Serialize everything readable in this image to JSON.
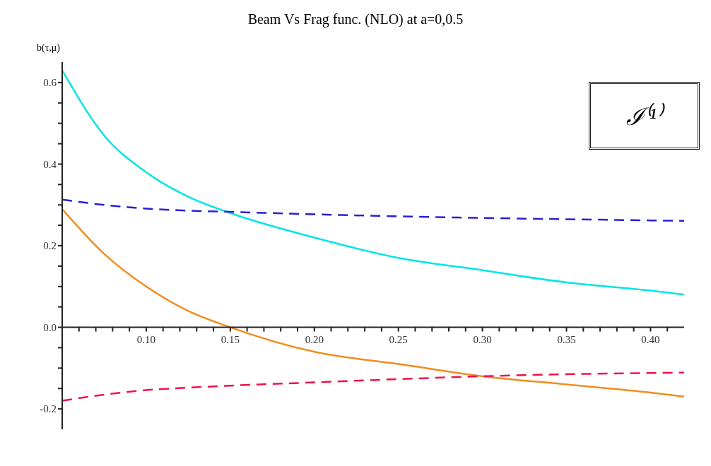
{
  "chart_data": {
    "type": "line",
    "title": "Beam Vs Frag func. (NLO) at a=0,0.5",
    "ylabel": "b(τ,μ)",
    "annotations": [
      "ℐ⁽¹⁾"
    ],
    "x": [
      0.05,
      0.075,
      0.1,
      0.125,
      0.15,
      0.2,
      0.25,
      0.3,
      0.35,
      0.4,
      0.42
    ],
    "series": [
      {
        "color": "#00e5e5",
        "line_style": "solid",
        "values": [
          0.63,
          0.47,
          0.38,
          0.32,
          0.28,
          0.22,
          0.17,
          0.14,
          0.11,
          0.09,
          0.08
        ]
      },
      {
        "color": "#2a1fd6",
        "line_style": "dashed",
        "values": [
          0.313,
          0.3,
          0.291,
          0.286,
          0.283,
          0.277,
          0.272,
          0.268,
          0.265,
          0.262,
          0.261
        ]
      },
      {
        "color": "#f28c1c",
        "line_style": "solid",
        "values": [
          0.29,
          0.18,
          0.1,
          0.04,
          0.0,
          -0.06,
          -0.09,
          -0.12,
          -0.14,
          -0.16,
          -0.17
        ]
      },
      {
        "color": "#f0124a",
        "line_style": "dashed",
        "values": [
          -0.18,
          -0.165,
          -0.154,
          -0.148,
          -0.143,
          -0.135,
          -0.127,
          -0.12,
          -0.115,
          -0.112,
          -0.111
        ]
      }
    ],
    "xlim": [
      0.05,
      0.42
    ],
    "xticks": [
      {
        "value": 0.06,
        "label": null
      },
      {
        "value": 0.07,
        "label": null
      },
      {
        "value": 0.08,
        "label": null
      },
      {
        "value": 0.09,
        "label": null
      },
      {
        "value": 0.1,
        "label": "0.10"
      },
      {
        "value": 0.11,
        "label": null
      },
      {
        "value": 0.12,
        "label": null
      },
      {
        "value": 0.13,
        "label": null
      },
      {
        "value": 0.14,
        "label": null
      },
      {
        "value": 0.15,
        "label": "0.15"
      },
      {
        "value": 0.16,
        "label": null
      },
      {
        "value": 0.17,
        "label": null
      },
      {
        "value": 0.18,
        "label": null
      },
      {
        "value": 0.19,
        "label": null
      },
      {
        "value": 0.2,
        "label": "0.20"
      },
      {
        "value": 0.21,
        "label": null
      },
      {
        "value": 0.22,
        "label": null
      },
      {
        "value": 0.23,
        "label": null
      },
      {
        "value": 0.24,
        "label": null
      },
      {
        "value": 0.25,
        "label": "0.25"
      },
      {
        "value": 0.26,
        "label": null
      },
      {
        "value": 0.27,
        "label": null
      },
      {
        "value": 0.28,
        "label": null
      },
      {
        "value": 0.29,
        "label": null
      },
      {
        "value": 0.3,
        "label": "0.30"
      },
      {
        "value": 0.31,
        "label": null
      },
      {
        "value": 0.32,
        "label": null
      },
      {
        "value": 0.33,
        "label": null
      },
      {
        "value": 0.34,
        "label": null
      },
      {
        "value": 0.35,
        "label": "0.35"
      },
      {
        "value": 0.36,
        "label": null
      },
      {
        "value": 0.37,
        "label": null
      },
      {
        "value": 0.38,
        "label": null
      },
      {
        "value": 0.39,
        "label": null
      },
      {
        "value": 0.4,
        "label": "0.40"
      },
      {
        "value": 0.41,
        "label": null
      }
    ],
    "ylim": [
      -0.25,
      0.65
    ],
    "yticks": [
      {
        "value": -0.2,
        "label": "-0.2"
      },
      {
        "value": -0.15,
        "label": null
      },
      {
        "value": -0.1,
        "label": null
      },
      {
        "value": -0.05,
        "label": null
      },
      {
        "value": 0,
        "label": "0.0"
      },
      {
        "value": 0.05,
        "label": null
      },
      {
        "value": 0.1,
        "label": null
      },
      {
        "value": 0.15,
        "label": null
      },
      {
        "value": 0.2,
        "label": "0.2"
      },
      {
        "value": 0.25,
        "label": null
      },
      {
        "value": 0.3,
        "label": null
      },
      {
        "value": 0.35,
        "label": null
      },
      {
        "value": 0.4,
        "label": "0.4"
      },
      {
        "value": 0.45,
        "label": null
      },
      {
        "value": 0.5,
        "label": null
      },
      {
        "value": 0.55,
        "label": null
      },
      {
        "value": 0.6,
        "label": "0.6"
      }
    ],
    "grid": false,
    "legend": false
  }
}
